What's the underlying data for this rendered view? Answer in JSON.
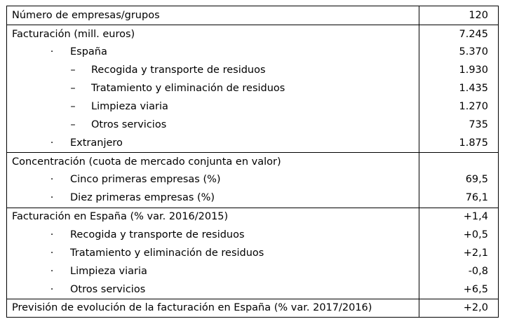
{
  "rows": [
    {
      "level": 0,
      "marker": "",
      "label": "Número de empresas/grupos",
      "value": "120"
    },
    {
      "level": 0,
      "marker": "",
      "label": "Facturación (mill. euros)",
      "value": "7.245"
    },
    {
      "level": 1,
      "marker": "·",
      "label": "España",
      "value": "5.370"
    },
    {
      "level": 2,
      "marker": "–",
      "label": "Recogida y transporte de residuos",
      "value": "1.930"
    },
    {
      "level": 2,
      "marker": "–",
      "label": "Tratamiento y eliminación de residuos",
      "value": "1.435"
    },
    {
      "level": 2,
      "marker": "–",
      "label": "Limpieza viaria",
      "value": "1.270"
    },
    {
      "level": 2,
      "marker": "–",
      "label": "Otros servicios",
      "value": "735"
    },
    {
      "level": 1,
      "marker": "·",
      "label": "Extranjero",
      "value": "1.875"
    },
    {
      "level": 0,
      "marker": "",
      "label": "Concentración (cuota de mercado conjunta en valor)",
      "value": ""
    },
    {
      "level": 1,
      "marker": "·",
      "label": "Cinco primeras empresas (%)",
      "value": "69,5"
    },
    {
      "level": 1,
      "marker": "·",
      "label": "Diez primeras empresas (%)",
      "value": "76,1"
    },
    {
      "level": 0,
      "marker": "",
      "label": "Facturación en España (% var. 2016/2015)",
      "value": "+1,4"
    },
    {
      "level": 1,
      "marker": "·",
      "label": "Recogida y transporte de residuos",
      "value": "+0,5"
    },
    {
      "level": 1,
      "marker": "·",
      "label": "Tratamiento y eliminación de residuos",
      "value": "+2,1"
    },
    {
      "level": 1,
      "marker": "·",
      "label": "Limpieza viaria",
      "value": "-0,8"
    },
    {
      "level": 1,
      "marker": "·",
      "label": "Otros servicios",
      "value": "+6,5"
    },
    {
      "level": 0,
      "marker": "",
      "label": "Previsión de evolución de la facturación en España (% var. 2017/2016)",
      "value": "+2,0"
    }
  ]
}
